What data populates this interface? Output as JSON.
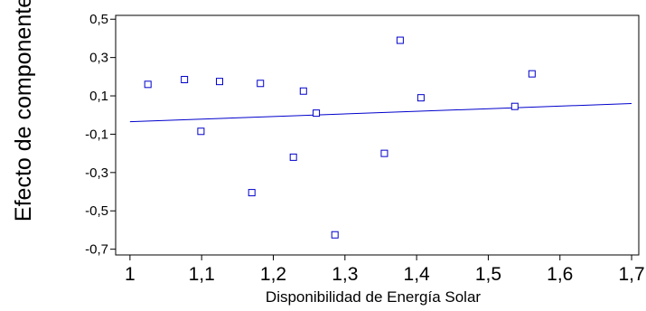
{
  "chart_data": {
    "type": "scatter",
    "title": "",
    "xlabel": "Disponibilidad de Energía Solar",
    "ylabel": "Efecto de componente",
    "xlim": [
      0.98,
      1.71
    ],
    "ylim": [
      -0.73,
      0.52
    ],
    "x_ticks": [
      {
        "value": 1.0,
        "label": "1"
      },
      {
        "value": 1.1,
        "label": "1,1"
      },
      {
        "value": 1.2,
        "label": "1,2"
      },
      {
        "value": 1.3,
        "label": "1,3"
      },
      {
        "value": 1.4,
        "label": "1,4"
      },
      {
        "value": 1.5,
        "label": "1,5"
      },
      {
        "value": 1.6,
        "label": "1,6"
      },
      {
        "value": 1.7,
        "label": "1,7"
      }
    ],
    "y_ticks": [
      {
        "value": 0.5,
        "label": "0,5"
      },
      {
        "value": 0.3,
        "label": "0,3"
      },
      {
        "value": 0.1,
        "label": "0,1"
      },
      {
        "value": -0.1,
        "label": "-0,1"
      },
      {
        "value": -0.3,
        "label": "-0,3"
      },
      {
        "value": -0.5,
        "label": "-0,5"
      },
      {
        "value": -0.7,
        "label": "-0,7"
      }
    ],
    "points": [
      {
        "x": 1.025,
        "y": 0.16
      },
      {
        "x": 1.076,
        "y": 0.185
      },
      {
        "x": 1.099,
        "y": -0.085
      },
      {
        "x": 1.125,
        "y": 0.175
      },
      {
        "x": 1.17,
        "y": -0.405
      },
      {
        "x": 1.182,
        "y": 0.165
      },
      {
        "x": 1.228,
        "y": -0.22
      },
      {
        "x": 1.242,
        "y": 0.125
      },
      {
        "x": 1.26,
        "y": 0.01
      },
      {
        "x": 1.286,
        "y": -0.625
      },
      {
        "x": 1.355,
        "y": -0.2
      },
      {
        "x": 1.377,
        "y": 0.39
      },
      {
        "x": 1.406,
        "y": 0.09
      },
      {
        "x": 1.537,
        "y": 0.045
      },
      {
        "x": 1.561,
        "y": 0.215
      }
    ],
    "fit_line": {
      "x": [
        1.0,
        1.7
      ],
      "y": [
        -0.035,
        0.06
      ]
    },
    "grid": false,
    "colors": {
      "points": "#0000cc",
      "fit_line": "#0000cc",
      "axes": "#000000"
    }
  }
}
